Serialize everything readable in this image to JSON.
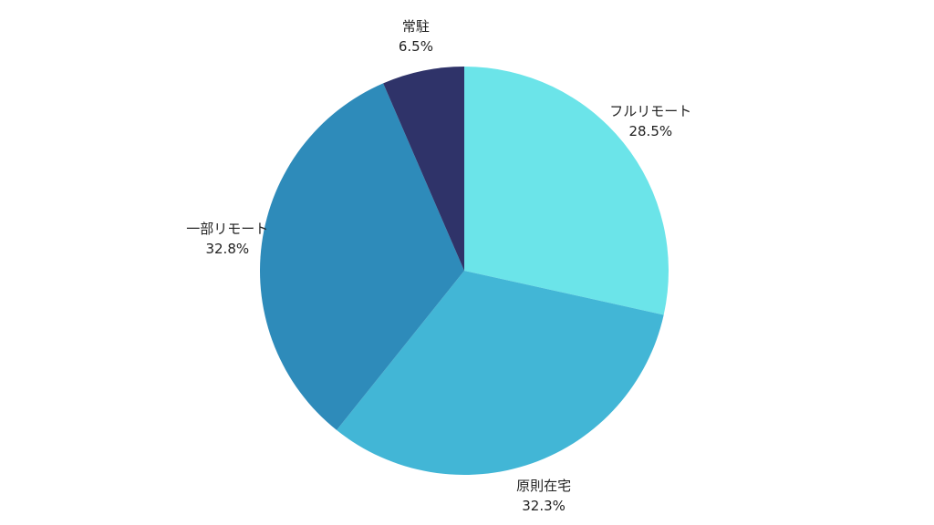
{
  "chart_data": {
    "type": "pie",
    "start_angle_deg": 0,
    "direction": "clockwise",
    "slices": [
      {
        "label": "フルリモート",
        "value": 28.5,
        "value_label": "28.5%",
        "color": "#6BE4E9"
      },
      {
        "label": "原則在宅",
        "value": 32.3,
        "value_label": "32.3%",
        "color": "#42B6D6"
      },
      {
        "label": "一部リモート",
        "value": 32.8,
        "value_label": "32.8%",
        "color": "#2E8BBA"
      },
      {
        "label": "常駐",
        "value": 6.5,
        "value_label": "6.5%",
        "color": "#2F3369"
      }
    ]
  }
}
